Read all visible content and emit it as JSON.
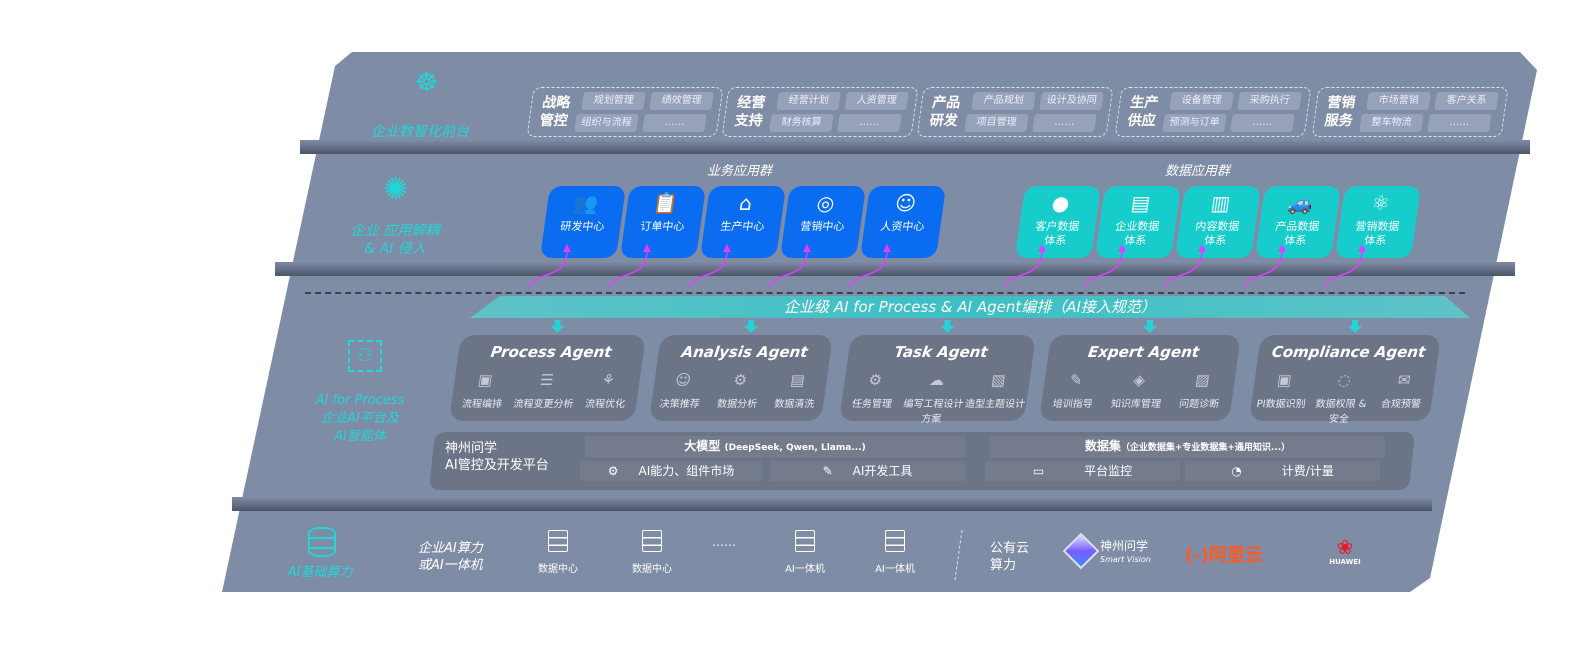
{
  "front": {
    "label": "企业数智化前台",
    "icon": "brain-icon",
    "groups": [
      {
        "title": "战略管控",
        "items": [
          "规划管理",
          "绩效管理",
          "组织与流程",
          "……"
        ]
      },
      {
        "title": "经营支持",
        "items": [
          "经营计划",
          "人资管理",
          "财务核算",
          "……"
        ]
      },
      {
        "title": "产品研发",
        "items": [
          "产品规划",
          "设计及协同",
          "项目管理",
          "……"
        ]
      },
      {
        "title": "生产供应",
        "items": [
          "设备管理",
          "采购执行",
          "预测与订单",
          "……"
        ]
      },
      {
        "title": "营销服务",
        "items": [
          "市场营销",
          "客户关系",
          "整车物流",
          "……"
        ]
      }
    ]
  },
  "apps": {
    "label": "企业 应用解耦 & AI 侵入",
    "icon": "molecule-icon",
    "business": {
      "title": "业务应用群",
      "color": "#0a6cf0",
      "cards": [
        {
          "label": "研发中心",
          "icon": "team-icon"
        },
        {
          "label": "订单中心",
          "icon": "clipboard-icon"
        },
        {
          "label": "生产中心",
          "icon": "factory-icon"
        },
        {
          "label": "营销中心",
          "icon": "target-icon"
        },
        {
          "label": "人资中心",
          "icon": "person-icon"
        }
      ]
    },
    "data": {
      "title": "数据应用群",
      "color": "#17cdcb",
      "cards": [
        {
          "label": "客户数据体系",
          "icon": "user-icon"
        },
        {
          "label": "企业数据体系",
          "icon": "building-icon"
        },
        {
          "label": "内容数据体系",
          "icon": "books-icon"
        },
        {
          "label": "产品数据体系",
          "icon": "car-icon"
        },
        {
          "label": "营销数据体系",
          "icon": "atom-icon"
        }
      ]
    }
  },
  "orchestration": "企业级 AI for Process & AI Agent编排（AI接入规范）",
  "ai": {
    "label": [
      "AI for Process",
      "企业AI平台及",
      "AI智能体"
    ],
    "icon": "face-scan-icon",
    "agents": [
      {
        "name": "Process Agent",
        "items": [
          "流程编排",
          "流程变更分析",
          "流程优化"
        ]
      },
      {
        "name": "Analysis Agent",
        "items": [
          "决策推荐",
          "数据分析",
          "数据清洗"
        ]
      },
      {
        "name": "Task Agent",
        "items": [
          "任务管理",
          "编写工程设计方案",
          "造型主题设计"
        ]
      },
      {
        "name": "Expert Agent",
        "items": [
          "培训指导",
          "知识库管理",
          "问题诊断"
        ]
      },
      {
        "name": "Compliance Agent",
        "items": [
          "PI数据识别",
          "数据权限 & 安全",
          "合规预警"
        ]
      }
    ],
    "platform": {
      "title": [
        "神州问学",
        "AI管控及开发平台"
      ],
      "model_header": "大模型",
      "model_note": "(DeepSeek, Qwen, Llama...)",
      "model_items": [
        "AI能力、组件市场",
        "AI开发工具"
      ],
      "data_header": "数据集",
      "data_note": "（企业数据集+专业数据集+通用知识...）",
      "data_items": [
        "平台监控",
        "计费/计量"
      ]
    }
  },
  "compute": {
    "label": "AI基础算力",
    "icon": "database-icon",
    "private_label": [
      "企业AI算力",
      "或AI一体机"
    ],
    "servers": [
      "数据中心",
      "数据中心",
      "AI一体机",
      "AI一体机"
    ],
    "ellipsis": "……",
    "public_label": [
      "公有云",
      "算力"
    ],
    "vendors": [
      {
        "name": "神州问学",
        "sub": "Smart Vision"
      },
      {
        "name": "阿里云",
        "color": "#ff5a1f"
      },
      {
        "name": "HUAWEI",
        "color": "#e41e26"
      }
    ]
  }
}
